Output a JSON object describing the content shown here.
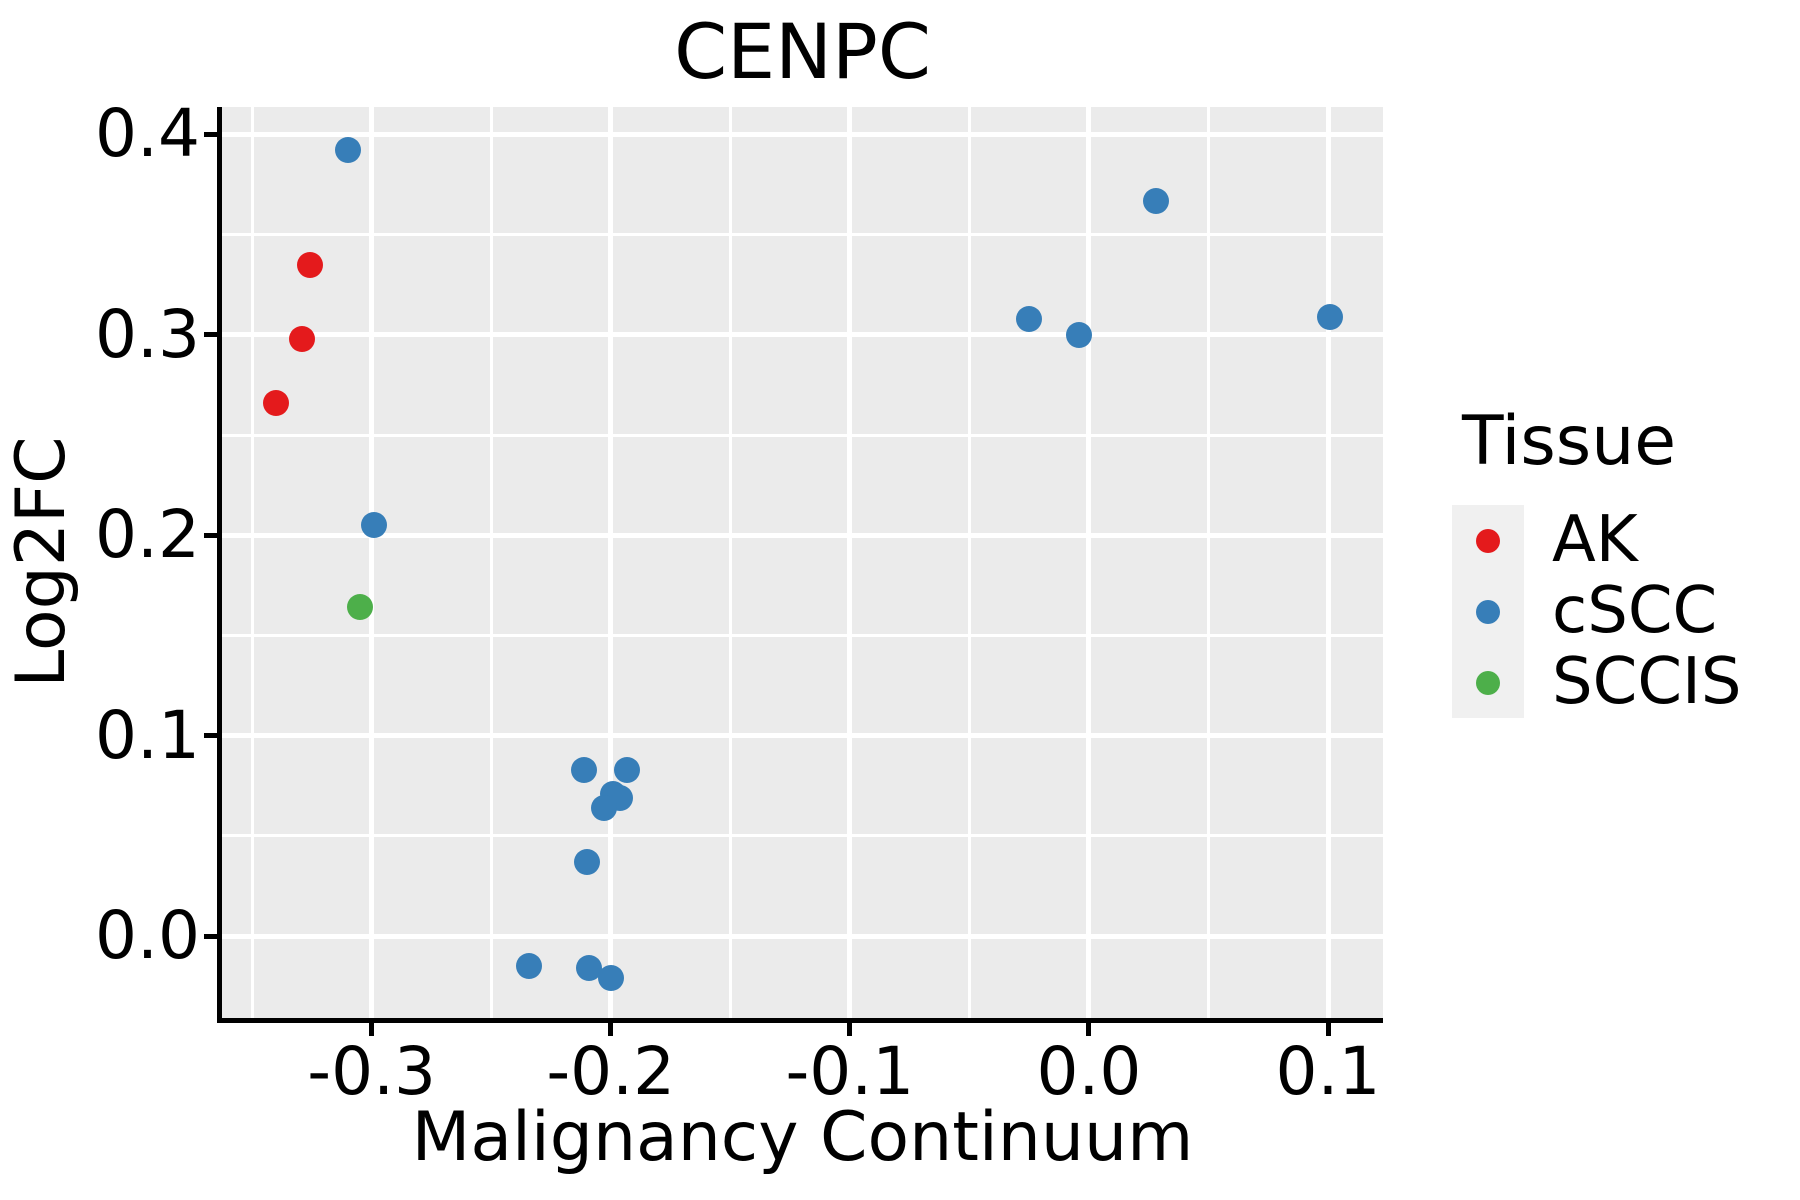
{
  "chart_data": {
    "type": "scatter",
    "title": "CENPC",
    "xlabel": "Malignancy Continuum",
    "ylabel": "Log2FC",
    "x_range": [
      -0.3626,
      0.123
    ],
    "y_range": [
      -0.0409,
      0.4137
    ],
    "x_ticks": {
      "values": [
        -0.3,
        -0.2,
        -0.1,
        0.0,
        0.1
      ],
      "labels": [
        "-0.3",
        "-0.2",
        "-0.1",
        "0.0",
        "0.1"
      ]
    },
    "y_ticks": {
      "values": [
        0.0,
        0.1,
        0.2,
        0.3,
        0.4
      ],
      "labels": [
        "0.0",
        "0.1",
        "0.2",
        "0.3",
        "0.4"
      ]
    },
    "x_minor_gridlines": [
      -0.35,
      -0.25,
      -0.15,
      -0.05,
      0.05
    ],
    "y_minor_gridlines": [
      0.05,
      0.15,
      0.25,
      0.35
    ],
    "grid": true,
    "panel_background": "#EBEBEB",
    "grid_color": "#FFFFFF",
    "axis_color": "#000000",
    "legend_key_background": "#F0F0F0",
    "legend_position": "right",
    "series": [
      {
        "name": "AK",
        "color": "#E41A1C",
        "points": [
          [
            -0.326,
            0.335
          ],
          [
            -0.329,
            0.298
          ],
          [
            -0.34,
            0.266
          ]
        ]
      },
      {
        "name": "cSCC",
        "color": "#377EB8",
        "points": [
          [
            -0.31,
            0.392
          ],
          [
            -0.299,
            0.205
          ],
          [
            -0.211,
            0.083
          ],
          [
            -0.193,
            0.083
          ],
          [
            -0.199,
            0.071
          ],
          [
            -0.196,
            0.069
          ],
          [
            -0.203,
            0.064
          ],
          [
            -0.21,
            0.037
          ],
          [
            -0.234,
            -0.015
          ],
          [
            -0.209,
            -0.016
          ],
          [
            -0.2,
            -0.021
          ],
          [
            -0.025,
            0.308
          ],
          [
            -0.004,
            0.3
          ],
          [
            0.028,
            0.367
          ],
          [
            0.101,
            0.309
          ]
        ]
      },
      {
        "name": "SCCIS",
        "color": "#4DAF4A",
        "points": [
          [
            -0.305,
            0.164
          ]
        ]
      }
    ],
    "legend": {
      "title": "Tissue",
      "entries": [
        {
          "label": "AK",
          "color": "#E41A1C"
        },
        {
          "label": "cSCC",
          "color": "#377EB8"
        },
        {
          "label": "SCCIS",
          "color": "#4DAF4A"
        }
      ]
    }
  }
}
